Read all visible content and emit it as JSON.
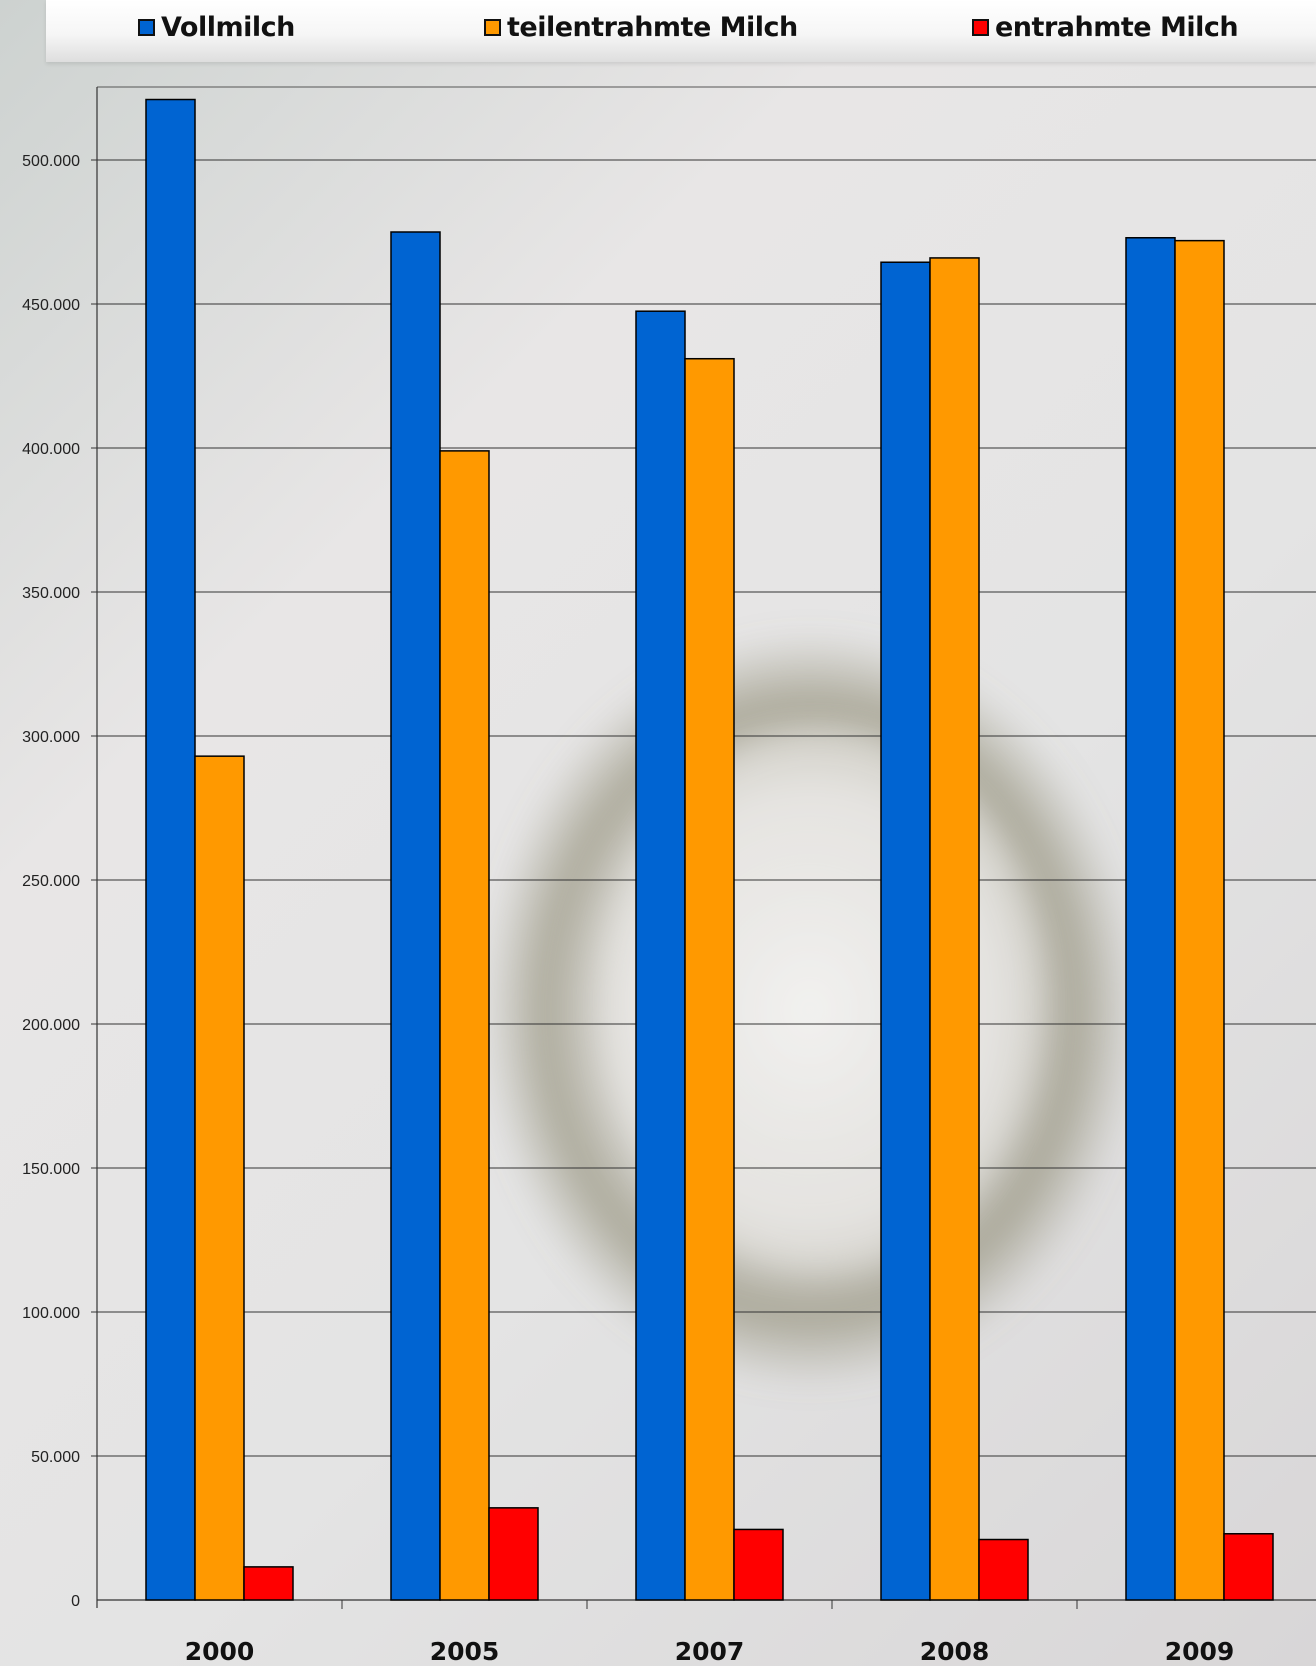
{
  "chart_data": {
    "type": "bar",
    "title": "",
    "xlabel": "",
    "ylabel": "",
    "categories": [
      "2000",
      "2005",
      "2007",
      "2008",
      "2009"
    ],
    "series": [
      {
        "name": "Vollmilch",
        "color": "#0064d2",
        "values": [
          521000,
          475000,
          447500,
          464500,
          473000
        ]
      },
      {
        "name": "teilentrahmte Milch",
        "color": "#ff9900",
        "values": [
          293000,
          399000,
          431000,
          466000,
          472000
        ]
      },
      {
        "name": "entrahmte Milch",
        "color": "#ff0000",
        "values": [
          11500,
          32000,
          24500,
          21000,
          23000
        ]
      }
    ],
    "ylim": [
      0,
      525000
    ],
    "yticks": [
      {
        "value": 0,
        "label": "0"
      },
      {
        "value": 50000,
        "label": "50.000"
      },
      {
        "value": 100000,
        "label": "100.000"
      },
      {
        "value": 150000,
        "label": "150.000"
      },
      {
        "value": 200000,
        "label": "200.000"
      },
      {
        "value": 250000,
        "label": "250.000"
      },
      {
        "value": 300000,
        "label": "300.000"
      },
      {
        "value": 350000,
        "label": "350.000"
      },
      {
        "value": 400000,
        "label": "400.000"
      },
      {
        "value": 450000,
        "label": "450.000"
      },
      {
        "value": 500000,
        "label": "500.000"
      }
    ],
    "grid": true,
    "legend_position": "top"
  }
}
